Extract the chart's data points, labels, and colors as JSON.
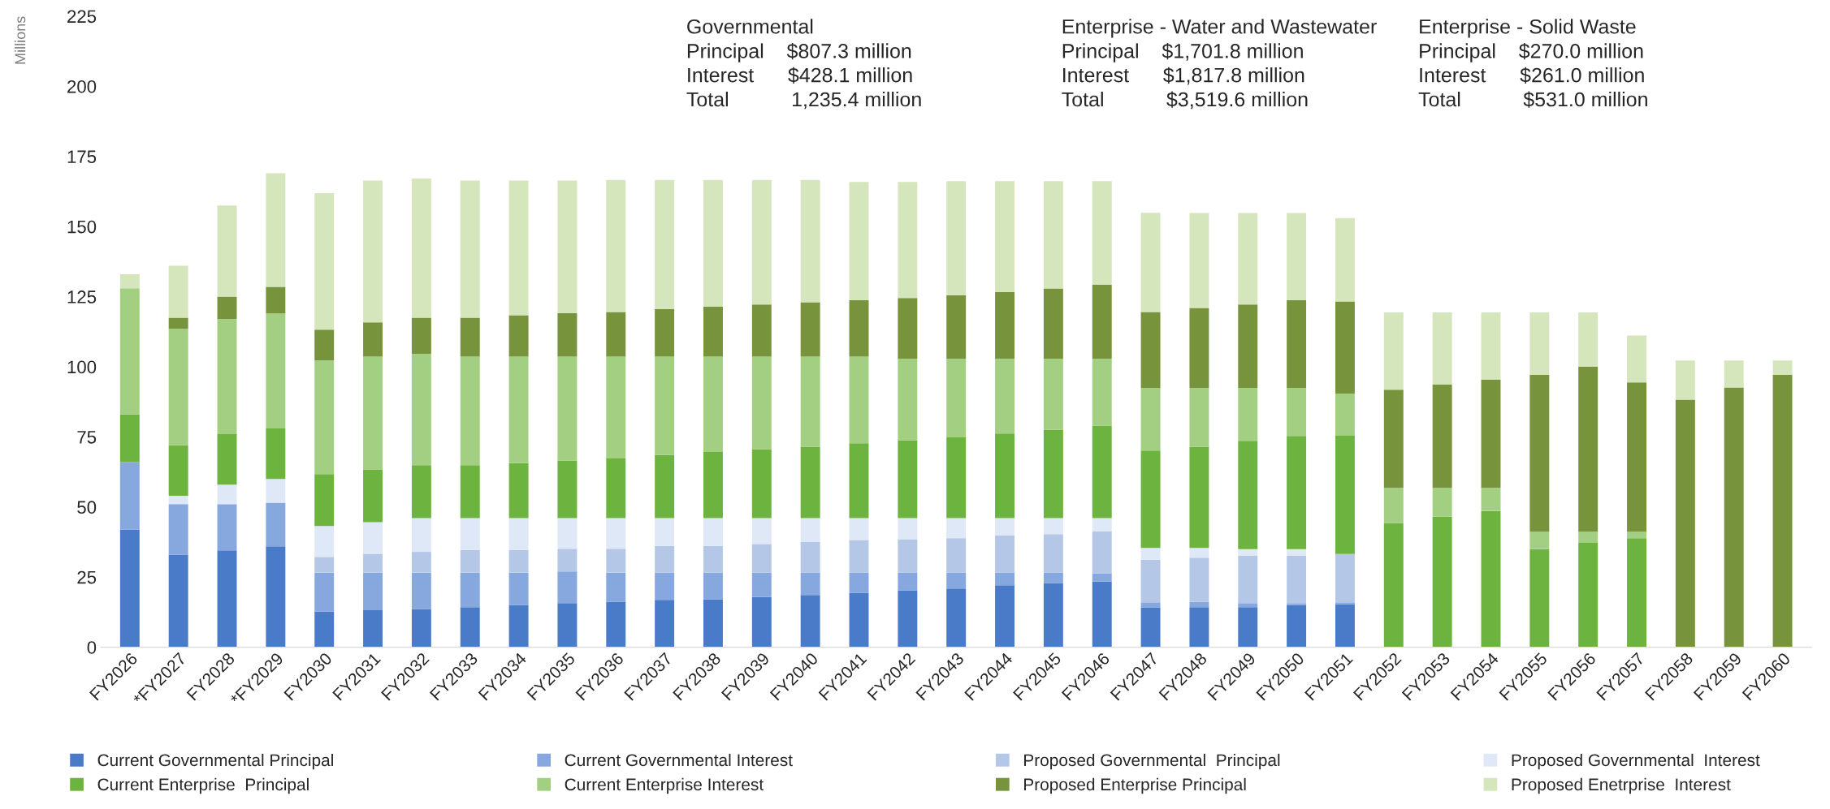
{
  "chart_data": {
    "type": "bar",
    "stacked": true,
    "ylabel": "Millions",
    "categories": [
      "FY2026",
      "*FY2027",
      "FY2028",
      "*FY2029",
      "FY2030",
      "FY2031",
      "FY2032",
      "FY2033",
      "FY2034",
      "FY2035",
      "FY2036",
      "FY2037",
      "FY2038",
      "FY2039",
      "FY2040",
      "FY2041",
      "FY2042",
      "FY2043",
      "FY2044",
      "FY2045",
      "FY2046",
      "FY2047",
      "FY2048",
      "FY2049",
      "FY2050",
      "FY2051",
      "FY2052",
      "FY2053",
      "FY2054",
      "FY2055",
      "FY2056",
      "FY2057",
      "FY2058",
      "FY2059",
      "FY2060"
    ],
    "series": [
      {
        "name": "Current Governmental Principal",
        "color": "#4a7bc8",
        "values": [
          42,
          33,
          34.5,
          36,
          12.7,
          13.2,
          13.6,
          14.3,
          15.0,
          15.7,
          16.2,
          16.9,
          17.1,
          17.9,
          18.6,
          19.3,
          20.2,
          20.9,
          22.1,
          22.8,
          23.5,
          14.1,
          14.3,
          14.3,
          15.0,
          15.3,
          0,
          0,
          0,
          0,
          0,
          0,
          0,
          0,
          0
        ]
      },
      {
        "name": "Current Governmental Interest",
        "color": "#86a8de",
        "values": [
          24,
          18,
          16.5,
          15.5,
          13.9,
          13.4,
          13.0,
          12.3,
          11.6,
          11.3,
          10.4,
          9.7,
          9.5,
          8.7,
          8.0,
          7.3,
          6.4,
          5.7,
          4.5,
          3.8,
          2.8,
          1.9,
          1.9,
          1.4,
          0.7,
          0.7,
          0,
          0,
          0,
          0,
          0,
          0,
          0,
          0,
          0
        ]
      },
      {
        "name": "Proposed Governmental  Principal",
        "color": "#b4c7e7",
        "values": [
          0,
          0,
          0,
          0,
          5.6,
          6.7,
          7.4,
          8.1,
          8.1,
          8.1,
          8.5,
          9.5,
          9.5,
          10.2,
          10.9,
          11.6,
          11.9,
          12.3,
          13.3,
          13.7,
          15.0,
          15.2,
          15.7,
          16.9,
          16.9,
          17.2,
          0,
          0,
          0,
          0,
          0,
          0,
          0,
          0,
          0
        ]
      },
      {
        "name": "Proposed Governmental  Interest",
        "color": "#dfe8f6",
        "values": [
          0,
          3,
          7,
          8.5,
          11.0,
          11.3,
          12.0,
          11.3,
          11.3,
          10.9,
          10.9,
          9.9,
          9.9,
          9.2,
          8.5,
          7.8,
          7.5,
          7.1,
          6.1,
          5.7,
          4.7,
          4.2,
          3.5,
          2.4,
          2.4,
          null,
          0,
          0,
          0,
          0,
          0,
          0,
          0,
          0,
          0
        ]
      },
      {
        "name": "Current Enterprise  Principal",
        "color": "#6db33f",
        "values": [
          17,
          18,
          18,
          18,
          18.5,
          18.8,
          18.9,
          18.9,
          19.6,
          20.6,
          21.3,
          22.5,
          23.6,
          24.6,
          25.5,
          26.7,
          27.8,
          28.8,
          30.2,
          31.6,
          33.0,
          34.7,
          36.1,
          38.6,
          40.3,
          42.2,
          44.3,
          46.5,
          48.6,
          35.0,
          37.2,
          38.9,
          0,
          0,
          0
        ]
      },
      {
        "name": "Current Enterprise Interest",
        "color": "#a3cf82",
        "values": [
          45,
          41.5,
          41,
          41,
          40.5,
          40.2,
          39.7,
          38.7,
          38.0,
          37.0,
          36.3,
          35.1,
          34.0,
          33.0,
          32.1,
          30.9,
          29.1,
          28.1,
          26.7,
          25.3,
          23.9,
          22.3,
          20.9,
          18.9,
          17.2,
          15.0,
          12.5,
          10.3,
          8.2,
          6.2,
          4.0,
          2.3,
          0,
          0,
          0
        ]
      },
      {
        "name": "Proposed Enterprise Principal",
        "color": "#77933c",
        "values": [
          0,
          4,
          8,
          9.5,
          11.0,
          12.2,
          12.9,
          13.9,
          14.8,
          15.5,
          15.9,
          16.9,
          17.9,
          18.6,
          19.4,
          20.2,
          21.6,
          22.6,
          23.8,
          25.0,
          26.3,
          27.1,
          28.6,
          29.7,
          31.2,
          32.9,
          35.0,
          36.8,
          38.6,
          56.0,
          58.9,
          53.2,
          88.3,
          92.6,
          97.2
        ]
      },
      {
        "name": "Proposed Enetrprise  Interest",
        "color": "#d5e6bd",
        "values": [
          5,
          18.5,
          32.5,
          40.5,
          48.7,
          50.6,
          49.6,
          48.9,
          48.0,
          47.3,
          47.1,
          46.1,
          45.1,
          44.4,
          43.6,
          42.1,
          41.4,
          40.7,
          39.5,
          38.3,
          37.0,
          35.4,
          33.8,
          32.6,
          31.1,
          29.7,
          27.6,
          25.8,
          24.0,
          22.2,
          19.3,
          16.7,
          13.9,
          9.6,
          5.0
        ]
      }
    ],
    "ylim": [
      0,
      225
    ],
    "yticks": [
      0,
      25,
      50,
      75,
      100,
      125,
      150,
      175,
      200,
      225
    ],
    "legend": "bottom",
    "annotations": [
      "Governmental",
      "Principal    $807.3 million",
      "Interest      $428.1 million",
      "Total           1,235.4 million",
      "Enterprise - Water and Wastewater",
      "Principal    $1,701.8 million",
      "Interest      $1,817.8 million",
      "Total           $3,519.6 million",
      "Enterprise - Solid Waste",
      "Principal    $270.0 million",
      "Interest      $261.0 million",
      "Total           $531.0 million"
    ]
  }
}
